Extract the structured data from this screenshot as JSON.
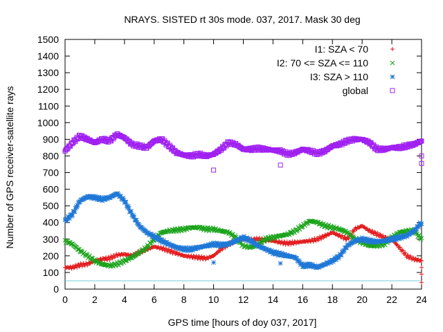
{
  "chart_data": {
    "type": "scatter",
    "title": "NRAYS. SISTED rt 30s mode. 037, 2017. Mask 30 deg",
    "xlabel": "GPS time [hours of doy 037, 2017]",
    "ylabel": "Number of GPS receiver-satellite rays",
    "xlim": [
      0,
      24
    ],
    "ylim": [
      0,
      1500
    ],
    "xticks": [
      0,
      2,
      4,
      6,
      8,
      10,
      12,
      14,
      16,
      18,
      20,
      22,
      24
    ],
    "yticks": [
      0,
      100,
      200,
      300,
      400,
      500,
      600,
      700,
      800,
      900,
      1000,
      1100,
      1200,
      1300,
      1400,
      1500
    ],
    "legend_position": "top-right",
    "reference_line": {
      "y": 50,
      "color": "#6fcfd6"
    },
    "series": [
      {
        "name": "I1: SZA < 70",
        "marker": "plus",
        "color": "#e31a1c",
        "x": [
          0,
          0.5,
          1,
          1.5,
          2,
          2.5,
          3,
          3.5,
          4,
          4.5,
          5,
          5.5,
          6,
          6.5,
          7,
          7.5,
          8,
          8.5,
          9,
          9.5,
          10,
          10.5,
          11,
          11.5,
          12,
          12.5,
          13,
          13.5,
          14,
          14.5,
          15,
          15.5,
          16,
          16.5,
          17,
          17.5,
          18,
          18.5,
          19,
          19.5,
          20,
          20.5,
          21,
          21.5,
          22,
          22.5,
          23,
          23.5,
          24
        ],
        "y": [
          130,
          130,
          145,
          150,
          170,
          180,
          185,
          205,
          210,
          200,
          220,
          240,
          255,
          245,
          230,
          215,
          200,
          195,
          190,
          185,
          200,
          240,
          270,
          290,
          300,
          295,
          300,
          295,
          290,
          280,
          275,
          280,
          285,
          290,
          300,
          320,
          340,
          320,
          300,
          360,
          380,
          350,
          330,
          310,
          300,
          250,
          200,
          180,
          170
        ]
      },
      {
        "name": "I2: 70 <= SZA <= 110",
        "marker": "cross",
        "color": "#1aa31a",
        "x": [
          0,
          0.5,
          1,
          1.5,
          2,
          2.5,
          3,
          3.5,
          4,
          4.5,
          5,
          5.5,
          6,
          6.5,
          7,
          7.5,
          8,
          8.5,
          9,
          9.5,
          10,
          10.5,
          11,
          11.5,
          12,
          12.5,
          13,
          13.5,
          14,
          14.5,
          15,
          15.5,
          16,
          16.5,
          17,
          17.5,
          18,
          18.5,
          19,
          19.5,
          20,
          20.5,
          21,
          21.5,
          22,
          22.5,
          23,
          23.5,
          24
        ],
        "y": [
          290,
          270,
          230,
          200,
          170,
          150,
          140,
          150,
          170,
          190,
          220,
          250,
          300,
          340,
          350,
          355,
          360,
          370,
          370,
          360,
          360,
          350,
          340,
          310,
          260,
          250,
          270,
          300,
          310,
          320,
          330,
          350,
          380,
          410,
          400,
          380,
          370,
          360,
          340,
          300,
          280,
          260,
          260,
          270,
          310,
          340,
          350,
          350,
          300
        ]
      },
      {
        "name": "I3: SZA > 110",
        "marker": "star",
        "color": "#1f78d6",
        "x": [
          0,
          0.5,
          1,
          1.5,
          2,
          2.5,
          3,
          3.5,
          4,
          4.5,
          5,
          5.5,
          6,
          6.5,
          7,
          7.5,
          8,
          8.5,
          9,
          9.5,
          10,
          10.5,
          11,
          11.5,
          12,
          12.5,
          13,
          13.5,
          14,
          14.5,
          15,
          15.5,
          16,
          16.5,
          17,
          17.5,
          18,
          18.5,
          19,
          19.5,
          20,
          20.5,
          21,
          21.5,
          22,
          22.5,
          23,
          23.5,
          24
        ],
        "y": [
          410,
          450,
          530,
          555,
          550,
          540,
          550,
          575,
          530,
          450,
          380,
          340,
          315,
          290,
          270,
          250,
          240,
          240,
          250,
          260,
          270,
          265,
          270,
          290,
          310,
          290,
          260,
          240,
          220,
          210,
          200,
          190,
          140,
          145,
          130,
          150,
          170,
          200,
          260,
          290,
          300,
          290,
          285,
          290,
          300,
          310,
          320,
          350,
          400
        ]
      },
      {
        "name": "global",
        "marker": "square",
        "color": "#a020f0",
        "x": [
          0,
          0.5,
          1,
          1.5,
          2,
          2.5,
          3,
          3.5,
          4,
          4.5,
          5,
          5.5,
          6,
          6.5,
          7,
          7.5,
          8,
          8.5,
          9,
          9.5,
          10,
          10.5,
          11,
          11.5,
          12,
          12.5,
          13,
          13.5,
          14,
          14.5,
          15,
          15.5,
          16,
          16.5,
          17,
          17.5,
          18,
          18.5,
          19,
          19.5,
          20,
          20.5,
          21,
          21.5,
          22,
          22.5,
          23,
          23.5,
          24
        ],
        "y": [
          830,
          880,
          920,
          900,
          880,
          900,
          890,
          930,
          910,
          870,
          860,
          850,
          890,
          900,
          860,
          820,
          805,
          800,
          810,
          800,
          810,
          840,
          880,
          870,
          840,
          840,
          845,
          840,
          835,
          830,
          810,
          820,
          840,
          830,
          815,
          830,
          860,
          870,
          890,
          900,
          900,
          880,
          840,
          840,
          850,
          850,
          860,
          870,
          890
        ]
      }
    ],
    "outliers": [
      {
        "series": "global",
        "x": 10.0,
        "y": 715
      },
      {
        "series": "global",
        "x": 14.5,
        "y": 745
      },
      {
        "series": "global",
        "x": 24.0,
        "y": 755
      },
      {
        "series": "global",
        "x": 24.0,
        "y": 800
      },
      {
        "series": "I1: SZA < 70",
        "x": 24.0,
        "y": 90
      },
      {
        "series": "I1: SZA < 70",
        "x": 24.0,
        "y": 40
      },
      {
        "series": "I1: SZA < 70",
        "x": 24.0,
        "y": 130
      },
      {
        "series": "I3: SZA > 110",
        "x": 10.0,
        "y": 160
      },
      {
        "series": "I3: SZA > 110",
        "x": 14.5,
        "y": 155
      }
    ]
  }
}
